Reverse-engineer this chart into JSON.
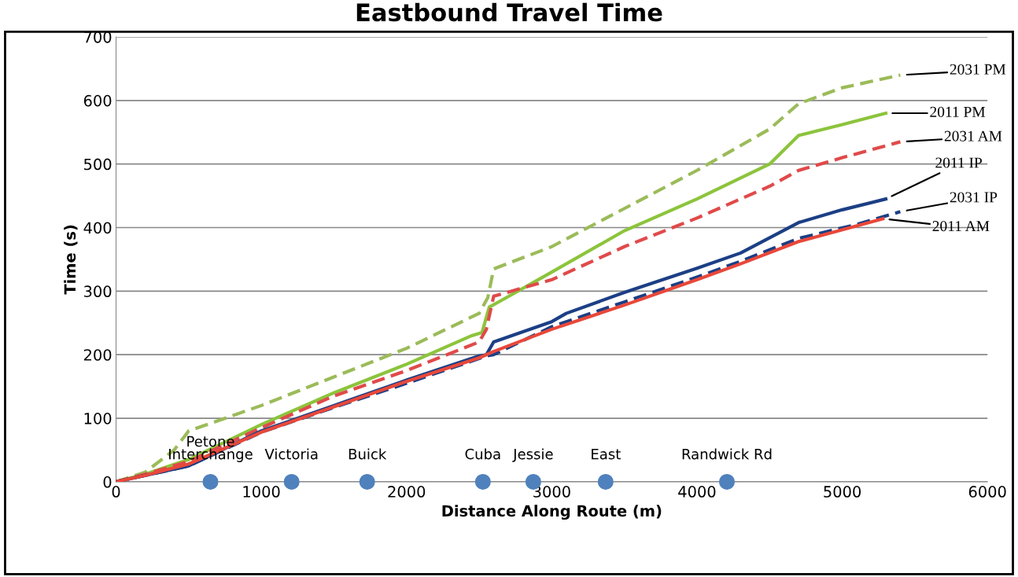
{
  "chart_data": {
    "type": "line",
    "title": "Eastbound Travel Time",
    "xlabel": "Distance Along Route (m)",
    "ylabel": "Time (s)",
    "xlim": [
      0,
      6000
    ],
    "xticks": [
      0,
      1000,
      2000,
      3000,
      4000,
      5000,
      6000
    ],
    "ylim": [
      0,
      700
    ],
    "yticks": [
      0,
      100,
      200,
      300,
      400,
      500,
      600,
      700
    ],
    "grid": "y",
    "legend": false,
    "marker": "none",
    "series": [
      {
        "name": "2031 PM",
        "color": "#9bbb59",
        "line_style": "dashed",
        "x": [
          0,
          200,
          400,
          500,
          1000,
          1500,
          2000,
          2500,
          2560,
          2600,
          3000,
          3500,
          4000,
          4500,
          4700,
          5000,
          5400
        ],
        "values": [
          0,
          15,
          50,
          80,
          120,
          165,
          210,
          265,
          290,
          335,
          370,
          430,
          490,
          555,
          595,
          620,
          640
        ]
      },
      {
        "name": "2011 PM",
        "color": "#8cc43c",
        "line_style": "solid",
        "x": [
          0,
          200,
          500,
          1000,
          1500,
          2000,
          2450,
          2520,
          2570,
          2650,
          3000,
          3500,
          4000,
          4500,
          4700,
          5000,
          5300
        ],
        "values": [
          0,
          12,
          35,
          90,
          140,
          185,
          230,
          235,
          275,
          285,
          330,
          395,
          445,
          500,
          545,
          562,
          580
        ]
      },
      {
        "name": "2031 AM",
        "color": "#e04a4a",
        "line_style": "dashed",
        "x": [
          0,
          200,
          500,
          1000,
          1500,
          2000,
          2500,
          2550,
          2600,
          3000,
          3500,
          4000,
          4500,
          4700,
          5000,
          5400
        ],
        "values": [
          0,
          12,
          32,
          85,
          135,
          175,
          220,
          240,
          292,
          318,
          370,
          415,
          465,
          490,
          510,
          535
        ]
      },
      {
        "name": "2011 IP",
        "color": "#1c3f85",
        "line_style": "solid",
        "x": [
          0,
          500,
          1000,
          1500,
          2000,
          2500,
          2550,
          2600,
          3000,
          3100,
          3500,
          4000,
          4300,
          4700,
          5000,
          5300
        ],
        "values": [
          0,
          25,
          80,
          120,
          160,
          198,
          200,
          220,
          252,
          265,
          298,
          336,
          360,
          408,
          428,
          445
        ]
      },
      {
        "name": "2031 IP",
        "color": "#1c3f85",
        "line_style": "dashed",
        "x": [
          0,
          500,
          1000,
          1500,
          2000,
          2450,
          2550,
          2600,
          3000,
          3500,
          4000,
          4300,
          4700,
          5100,
          5400
        ],
        "values": [
          0,
          25,
          78,
          117,
          155,
          190,
          198,
          200,
          244,
          283,
          322,
          347,
          383,
          405,
          425
        ]
      },
      {
        "name": "2011 AM",
        "color": "#e8483a",
        "line_style": "solid",
        "x": [
          0,
          200,
          500,
          1000,
          1500,
          2000,
          2500,
          2600,
          3000,
          3500,
          4000,
          4300,
          4700,
          5280
        ],
        "values": [
          0,
          10,
          28,
          78,
          118,
          158,
          195,
          205,
          240,
          278,
          318,
          343,
          378,
          414
        ]
      },
      {
        "type": "scatter",
        "color": "#4f81bd",
        "marker": "circle",
        "x": [
          650,
          1209,
          1729,
          2526,
          2873,
          3371,
          4206
        ],
        "values": [
          0,
          0,
          0,
          0,
          0,
          0,
          0
        ]
      }
    ],
    "annotations": [
      {
        "text": "Petone\nInterchange",
        "x": 650,
        "y": 0
      },
      {
        "text": "Victoria",
        "x": 1209,
        "y": 0
      },
      {
        "text": "Buick",
        "x": 1729,
        "y": 0
      },
      {
        "text": "Cuba",
        "x": 2526,
        "y": 0
      },
      {
        "text": "Jessie",
        "x": 2873,
        "y": 0
      },
      {
        "text": "East",
        "x": 3371,
        "y": 0
      },
      {
        "text": "Randwick Rd",
        "x": 4206,
        "y": 0
      }
    ]
  }
}
